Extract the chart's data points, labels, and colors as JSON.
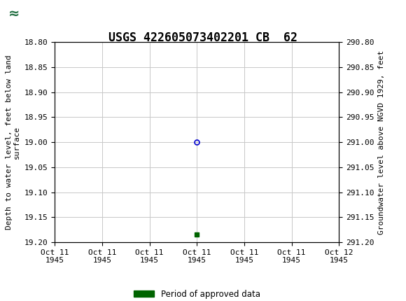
{
  "title": "USGS 422605073402201 CB  62",
  "title_fontsize": 12,
  "ylabel_left": "Depth to water level, feet below land\nsurface",
  "ylabel_right": "Groundwater level above NGVD 1929, feet",
  "ylim_left": [
    18.8,
    19.2
  ],
  "ylim_right": [
    291.2,
    290.8
  ],
  "yticks_left": [
    18.8,
    18.85,
    18.9,
    18.95,
    19.0,
    19.05,
    19.1,
    19.15,
    19.2
  ],
  "yticks_right": [
    291.2,
    291.15,
    291.1,
    291.05,
    291.0,
    290.95,
    290.9,
    290.85,
    290.8
  ],
  "data_point_x_hours": 12,
  "data_point_y": 19.0,
  "marker_color": "#0000cd",
  "marker_style": "o",
  "marker_size": 5,
  "green_marker_y": 19.185,
  "green_marker_color": "#006400",
  "green_marker_style": "s",
  "green_marker_size": 4,
  "background_color": "#ffffff",
  "plot_bg_color": "#ffffff",
  "grid_color": "#c8c8c8",
  "header_color": "#1a6b3c",
  "legend_label": "Period of approved data",
  "legend_color": "#006400",
  "font_family": "monospace",
  "tick_fontsize": 8,
  "axis_label_fontsize": 8,
  "xtick_hours": [
    0,
    4,
    8,
    12,
    16,
    20,
    24
  ],
  "xtick_labels": [
    "Oct 11\n1945",
    "Oct 11\n1945",
    "Oct 11\n1945",
    "Oct 11\n1945",
    "Oct 11\n1945",
    "Oct 11\n1945",
    "Oct 12\n1945"
  ]
}
